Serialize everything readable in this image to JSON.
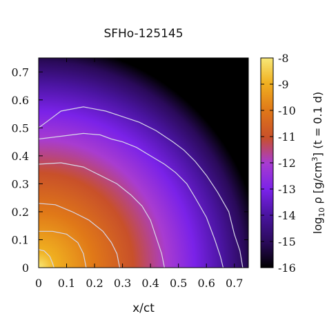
{
  "chart_data": {
    "type": "heatmap",
    "title": "SFHo-125145",
    "xlabel": "x/ct",
    "ylabel": "",
    "colorbar_label_prefix": "log",
    "colorbar_label_sub": "10",
    "colorbar_label_mid": " ρ [g/cm",
    "colorbar_label_sup": "3",
    "colorbar_label_suffix": "] (t = 0.1 d)",
    "xlim": [
      0,
      0.75
    ],
    "ylim": [
      0,
      0.75
    ],
    "clim": [
      -16,
      -8
    ],
    "x_ticks": [
      "0",
      "0.1",
      "0.2",
      "0.3",
      "0.4",
      "0.5",
      "0.6",
      "0.7"
    ],
    "y_ticks": [
      "0",
      "0.1",
      "0.2",
      "0.3",
      "0.4",
      "0.5",
      "0.6",
      "0.7"
    ],
    "colorbar_ticks": [
      "-8",
      "-9",
      "-10",
      "-11",
      "-12",
      "-13",
      "-14",
      "-15",
      "-16"
    ],
    "colormap": [
      "#000000",
      "#2a0a5a",
      "#4a14a0",
      "#7a22e8",
      "#a83cd0",
      "#c8502a",
      "#e07818",
      "#f0b020",
      "#f8e878"
    ],
    "contour_color": "#d8d8e8",
    "contours": [
      {
        "level": -14.5,
        "points": [
          [
            0,
            0.5
          ],
          [
            0.04,
            0.53
          ],
          [
            0.08,
            0.56
          ],
          [
            0.16,
            0.575
          ],
          [
            0.24,
            0.56
          ],
          [
            0.3,
            0.54
          ],
          [
            0.36,
            0.52
          ],
          [
            0.42,
            0.49
          ],
          [
            0.48,
            0.45
          ],
          [
            0.52,
            0.42
          ],
          [
            0.56,
            0.38
          ],
          [
            0.6,
            0.33
          ],
          [
            0.64,
            0.27
          ],
          [
            0.68,
            0.2
          ],
          [
            0.7,
            0.12
          ],
          [
            0.72,
            0.06
          ],
          [
            0.73,
            0
          ]
        ]
      },
      {
        "level": -13.8,
        "points": [
          [
            0,
            0.46
          ],
          [
            0.08,
            0.47
          ],
          [
            0.16,
            0.48
          ],
          [
            0.22,
            0.475
          ],
          [
            0.26,
            0.46
          ],
          [
            0.3,
            0.45
          ],
          [
            0.35,
            0.43
          ],
          [
            0.4,
            0.4
          ],
          [
            0.45,
            0.37
          ],
          [
            0.49,
            0.34
          ],
          [
            0.53,
            0.3
          ],
          [
            0.56,
            0.25
          ],
          [
            0.6,
            0.18
          ],
          [
            0.63,
            0.1
          ],
          [
            0.65,
            0.04
          ],
          [
            0.66,
            0
          ]
        ]
      },
      {
        "level": -13.0,
        "points": [
          [
            0,
            0.37
          ],
          [
            0.08,
            0.375
          ],
          [
            0.16,
            0.36
          ],
          [
            0.22,
            0.33
          ],
          [
            0.28,
            0.3
          ],
          [
            0.33,
            0.26
          ],
          [
            0.37,
            0.22
          ],
          [
            0.4,
            0.17
          ],
          [
            0.42,
            0.11
          ],
          [
            0.44,
            0.05
          ],
          [
            0.45,
            0
          ]
        ]
      },
      {
        "level": -11.5,
        "points": [
          [
            0,
            0.23
          ],
          [
            0.06,
            0.225
          ],
          [
            0.12,
            0.2
          ],
          [
            0.18,
            0.17
          ],
          [
            0.23,
            0.13
          ],
          [
            0.26,
            0.09
          ],
          [
            0.28,
            0.05
          ],
          [
            0.29,
            0
          ]
        ]
      },
      {
        "level": -10.5,
        "points": [
          [
            0,
            0.13
          ],
          [
            0.05,
            0.13
          ],
          [
            0.1,
            0.12
          ],
          [
            0.14,
            0.09
          ],
          [
            0.16,
            0.05
          ],
          [
            0.17,
            0
          ]
        ]
      },
      {
        "level": -9.5,
        "points": [
          [
            0,
            0.065
          ],
          [
            0.02,
            0.06
          ],
          [
            0.04,
            0.04
          ],
          [
            0.05,
            0.015
          ],
          [
            0.055,
            0
          ]
        ]
      }
    ]
  }
}
